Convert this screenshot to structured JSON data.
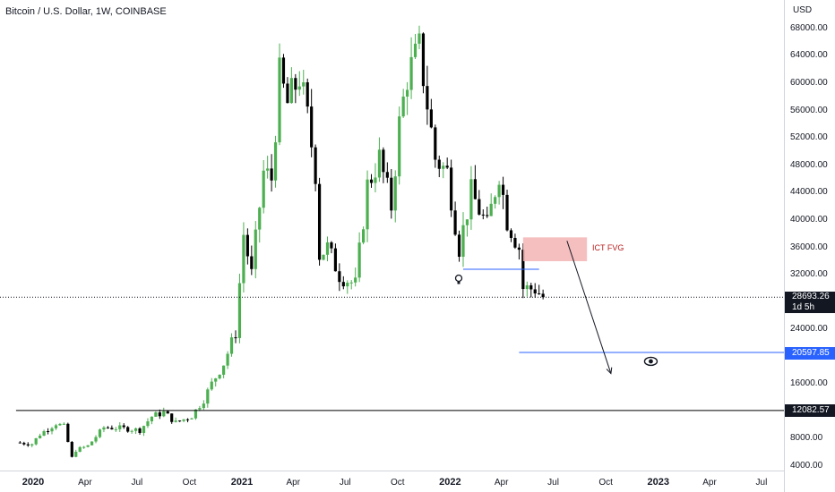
{
  "header": {
    "title": "Bitcoin / U.S. Dollar, 1W, COINBASE"
  },
  "price_axis": {
    "currency": "USD",
    "ticks": [
      "68000.00",
      "64000.00",
      "60000.00",
      "56000.00",
      "52000.00",
      "48000.00",
      "44000.00",
      "40000.00",
      "36000.00",
      "32000.00",
      "24000.00",
      "16000.00",
      "8000.00",
      "4000.00"
    ],
    "last_price": "28693.26",
    "countdown": "1d 5h",
    "blue_level": "20597.85",
    "black_level": "12082.57"
  },
  "time_axis": {
    "ticks": [
      {
        "label": "2020",
        "year": true
      },
      {
        "label": "Apr",
        "year": false
      },
      {
        "label": "Jul",
        "year": false
      },
      {
        "label": "Oct",
        "year": false
      },
      {
        "label": "2021",
        "year": true
      },
      {
        "label": "Apr",
        "year": false
      },
      {
        "label": "Jul",
        "year": false
      },
      {
        "label": "Oct",
        "year": false
      },
      {
        "label": "2022",
        "year": true
      },
      {
        "label": "Apr",
        "year": false
      },
      {
        "label": "Jul",
        "year": false
      },
      {
        "label": "Oct",
        "year": false
      },
      {
        "label": "2023",
        "year": true
      },
      {
        "label": "Apr",
        "year": false
      },
      {
        "label": "Jul",
        "year": false
      }
    ]
  },
  "annotations": {
    "fvg_label": "ICT FVG"
  },
  "colors": {
    "up": "#4caf50",
    "down": "#000000",
    "blue": "#2962ff",
    "fvg": "#f4b4b4",
    "text": "#131722"
  },
  "chart_data": {
    "type": "candlestick",
    "interval": "1W",
    "title": "Bitcoin / U.S. Dollar, 1W, COINBASE",
    "ylabel": "USD",
    "x_start": "2019-12-02",
    "x_end": "2023-08-14",
    "ylim": [
      4000,
      70000
    ],
    "close_path": [
      [
        "2019-12-02",
        7400
      ],
      [
        "2019-12-30",
        7200
      ],
      [
        "2020-01-13",
        8600
      ],
      [
        "2020-02-10",
        10200
      ],
      [
        "2020-02-24",
        9700
      ],
      [
        "2020-03-09",
        5200
      ],
      [
        "2020-03-16",
        6300
      ],
      [
        "2020-04-06",
        6900
      ],
      [
        "2020-05-04",
        9600
      ],
      [
        "2020-06-01",
        9500
      ],
      [
        "2020-07-06",
        9200
      ],
      [
        "2020-07-27",
        11200
      ],
      [
        "2020-08-17",
        11800
      ],
      [
        "2020-09-07",
        10300
      ],
      [
        "2020-10-05",
        11300
      ],
      [
        "2020-10-26",
        13700
      ],
      [
        "2020-11-09",
        16000
      ],
      [
        "2020-11-30",
        19000
      ],
      [
        "2020-12-21",
        23500
      ],
      [
        "2021-01-04",
        38000
      ],
      [
        "2021-01-18",
        32000
      ],
      [
        "2021-02-08",
        47000
      ],
      [
        "2021-02-22",
        46000
      ],
      [
        "2021-03-08",
        61000
      ],
      [
        "2021-03-22",
        57000
      ],
      [
        "2021-04-12",
        61000
      ],
      [
        "2021-04-26",
        55000
      ],
      [
        "2021-05-10",
        47000
      ],
      [
        "2021-05-17",
        35000
      ],
      [
        "2021-05-31",
        36000
      ],
      [
        "2021-06-21",
        32000
      ],
      [
        "2021-07-19",
        30500
      ],
      [
        "2021-08-09",
        45000
      ],
      [
        "2021-08-30",
        49000
      ],
      [
        "2021-09-20",
        42000
      ],
      [
        "2021-10-04",
        54000
      ],
      [
        "2021-10-18",
        61000
      ],
      [
        "2021-11-08",
        65000
      ],
      [
        "2021-11-22",
        57000
      ],
      [
        "2021-12-06",
        49000
      ],
      [
        "2021-12-27",
        47000
      ],
      [
        "2022-01-17",
        36000
      ],
      [
        "2022-02-07",
        44000
      ],
      [
        "2022-03-07",
        39000
      ],
      [
        "2022-03-28",
        47000
      ],
      [
        "2022-04-11",
        40000
      ],
      [
        "2022-05-02",
        36000
      ],
      [
        "2022-05-09",
        30000
      ],
      [
        "2022-05-30",
        29900
      ],
      [
        "2022-06-13",
        28693
      ]
    ],
    "horizontal_levels": [
      {
        "value": 20597.85,
        "color": "#2962ff",
        "from": "2022-05-02"
      },
      {
        "value": 12082.57,
        "color": "#000000",
        "from": "2019-12-02"
      },
      {
        "value": 32800,
        "color": "#2962ff",
        "from": "2022-01-24",
        "to": "2022-06-06"
      }
    ],
    "zones": [
      {
        "label": "ICT FVG",
        "from": "2022-05-09",
        "to": "2022-08-29",
        "low": 34000,
        "high": 37500,
        "color": "#f4b4b4"
      }
    ],
    "arrows": [
      {
        "from": [
          "2022-07-25",
          37000
        ],
        "to": [
          "2022-10-10",
          17500
        ]
      }
    ]
  }
}
